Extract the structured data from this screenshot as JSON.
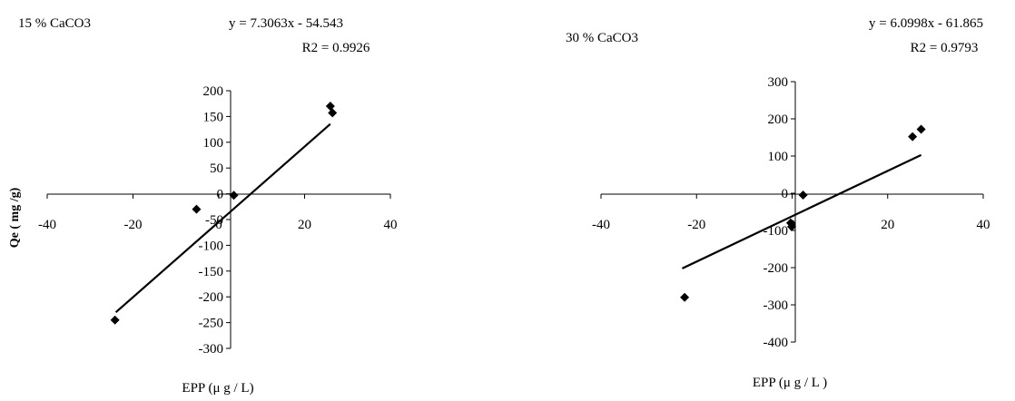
{
  "chart_data": [
    {
      "type": "scatter",
      "title": "15 % CaCO3",
      "equation": "y = 7.3063x - 54.543",
      "r2": "R2 = 0.9926",
      "xlabel": "EPP (μ g / L)",
      "ylabel": "Qe ( mg /g)",
      "xlim": [
        -40,
        40
      ],
      "ylim": [
        -300,
        200
      ],
      "xticks": [
        -40,
        -20,
        0,
        20,
        40
      ],
      "yticks": [
        200,
        150,
        100,
        50,
        0,
        -50,
        -100,
        -150,
        -200,
        -250,
        -300
      ],
      "series": [
        {
          "x": [
            -24.2,
            -5.2,
            3.5,
            26.0,
            26.5
          ],
          "y": [
            -245,
            -30,
            -3,
            170,
            157
          ]
        }
      ],
      "trendline": {
        "slope": 7.3063,
        "intercept": -54.543,
        "x_range": [
          -24,
          26
        ]
      }
    },
    {
      "type": "scatter",
      "title": "30 % CaCO3",
      "equation": "y = 6.0998x - 61.865",
      "r2": "R2 = 0.9793",
      "xlabel": "EPP (μ g / L )",
      "ylabel": "",
      "xlim": [
        -40,
        40
      ],
      "ylim": [
        -400,
        300
      ],
      "xticks": [
        -40,
        -20,
        0,
        20,
        40
      ],
      "yticks": [
        300,
        200,
        100,
        0,
        -100,
        -200,
        -300,
        -400
      ],
      "series": [
        {
          "x": [
            -22.5,
            -0.3,
            -0.1,
            2.3,
            25.2,
            27.0
          ],
          "y": [
            -280,
            -80,
            -90,
            -5,
            152,
            172
          ]
        }
      ],
      "trendline": {
        "slope": 6.0998,
        "intercept": -61.865,
        "x_range": [
          -23,
          27
        ]
      }
    }
  ]
}
